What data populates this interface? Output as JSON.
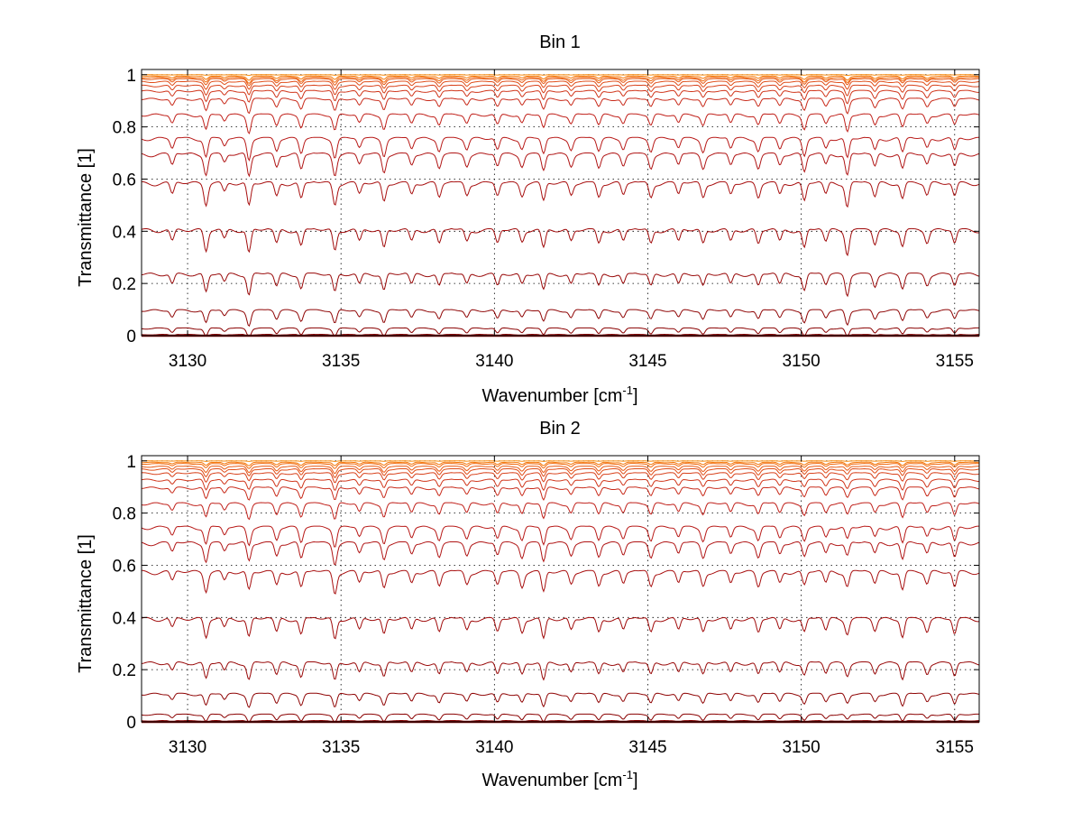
{
  "chart_data": [
    {
      "type": "line",
      "title": "Bin 1",
      "xlabel": "Wavenumber [cm",
      "xlabel_sup": "-1",
      "xlabel_end": "]",
      "ylabel": "Transmittance [1]",
      "xlim": [
        3128.5,
        3155.8
      ],
      "ylim": [
        0,
        1.02
      ],
      "x_ticks": [
        3130,
        3135,
        3140,
        3145,
        3150,
        3155
      ],
      "x_tick_labels": [
        "3130",
        "3135",
        "3140",
        "3145",
        "3150",
        "3155"
      ],
      "y_ticks": [
        0,
        0.2,
        0.4,
        0.6,
        0.8,
        1
      ],
      "y_tick_labels": [
        "0",
        "0.2",
        "0.4",
        "0.6",
        "0.8",
        "1"
      ],
      "grid": true,
      "series_baselines": [
        0.0,
        0.005,
        0.03,
        0.1,
        0.24,
        0.41,
        0.59,
        0.7,
        0.76,
        0.85,
        0.91,
        0.94,
        0.96,
        0.975,
        0.985,
        0.99,
        0.995,
        1.0
      ],
      "series_colors": [
        "#7f0000",
        "#800000",
        "#8a0000",
        "#8f0505",
        "#980808",
        "#a00a0a",
        "#a81010",
        "#b01515",
        "#b81a18",
        "#c0201a",
        "#c82a1a",
        "#d0351a",
        "#d8401a",
        "#e04d18",
        "#e85a15",
        "#f06a10",
        "#f57a0c",
        "#fa8a08"
      ],
      "absorption_lines": [
        3129.5,
        3130.6,
        3131.2,
        3132.0,
        3132.9,
        3133.7,
        3134.8,
        3135.6,
        3136.4,
        3137.3,
        3138.2,
        3139.1,
        3140.1,
        3140.9,
        3141.6,
        3142.5,
        3143.4,
        3144.2,
        3145.1,
        3146.0,
        3146.8,
        3147.7,
        3148.6,
        3149.3,
        3150.1,
        3150.8,
        3151.5,
        3152.4,
        3153.3,
        3154.1,
        3155.0
      ],
      "absorption_depths": [
        0.5,
        0.9,
        0.4,
        1.0,
        0.6,
        0.7,
        0.9,
        0.5,
        0.8,
        0.5,
        0.6,
        0.5,
        0.6,
        0.5,
        0.8,
        0.5,
        0.6,
        0.5,
        0.6,
        0.5,
        0.6,
        0.5,
        0.6,
        0.5,
        0.8,
        0.5,
        1.0,
        0.6,
        0.7,
        0.5,
        0.6
      ]
    },
    {
      "type": "line",
      "title": "Bin 2",
      "xlabel": "Wavenumber [cm",
      "xlabel_sup": "-1",
      "xlabel_end": "]",
      "ylabel": "Transmittance [1]",
      "xlim": [
        3128.5,
        3155.8
      ],
      "ylim": [
        0,
        1.02
      ],
      "x_ticks": [
        3130,
        3135,
        3140,
        3145,
        3150,
        3155
      ],
      "x_tick_labels": [
        "3130",
        "3135",
        "3140",
        "3145",
        "3150",
        "3155"
      ],
      "y_ticks": [
        0,
        0.2,
        0.4,
        0.6,
        0.8,
        1
      ],
      "y_tick_labels": [
        "0",
        "0.2",
        "0.4",
        "0.6",
        "0.8",
        "1"
      ],
      "grid": true,
      "series_baselines": [
        0.0,
        0.005,
        0.03,
        0.11,
        0.23,
        0.4,
        0.58,
        0.69,
        0.75,
        0.84,
        0.9,
        0.93,
        0.955,
        0.97,
        0.98,
        0.99,
        0.995,
        1.0
      ],
      "series_colors": [
        "#7f0000",
        "#800000",
        "#8a0000",
        "#8f0505",
        "#980808",
        "#a00a0a",
        "#a81010",
        "#b01515",
        "#b81a18",
        "#c0201a",
        "#c82a1a",
        "#d0351a",
        "#d8401a",
        "#e04d18",
        "#e85a15",
        "#f06a10",
        "#f57a0c",
        "#fa8a08"
      ],
      "absorption_lines": [
        3129.5,
        3130.6,
        3131.2,
        3132.0,
        3132.9,
        3133.7,
        3134.8,
        3135.6,
        3136.4,
        3137.3,
        3138.2,
        3139.1,
        3140.1,
        3140.9,
        3141.6,
        3142.5,
        3143.4,
        3144.2,
        3145.1,
        3146.0,
        3146.8,
        3147.7,
        3148.6,
        3149.3,
        3150.1,
        3150.8,
        3151.5,
        3152.4,
        3153.3,
        3154.1,
        3155.0
      ],
      "absorption_depths": [
        0.4,
        0.8,
        0.4,
        0.8,
        0.6,
        0.7,
        0.9,
        0.5,
        0.7,
        0.5,
        0.6,
        0.5,
        0.6,
        0.6,
        0.9,
        0.5,
        0.6,
        0.5,
        0.6,
        0.5,
        0.6,
        0.5,
        0.6,
        0.5,
        0.6,
        0.5,
        0.6,
        0.5,
        0.8,
        0.5,
        0.7
      ]
    }
  ]
}
